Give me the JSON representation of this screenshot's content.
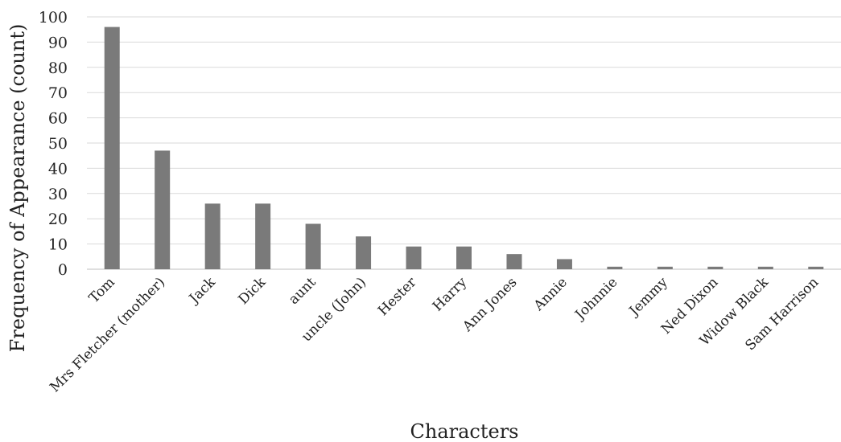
{
  "chart_data": {
    "type": "bar",
    "title": "",
    "xlabel": "Characters",
    "ylabel": "Frequency of Appearance (count)",
    "ylim": [
      0,
      100
    ],
    "yticks": [
      0,
      10,
      20,
      30,
      40,
      50,
      60,
      70,
      80,
      90,
      100
    ],
    "grid": true,
    "bar_color": "#7a7a7a",
    "categories": [
      "Tom",
      "Mrs Fletcher (mother)",
      "Jack",
      "Dick",
      "aunt",
      "uncle (John)",
      "Hester",
      "Harry",
      "Ann Jones",
      "Annie",
      "Johnnie",
      "Jemmy",
      "Ned Dixon",
      "Widow Black",
      "Sam Harrison"
    ],
    "values": [
      96,
      47,
      26,
      26,
      18,
      13,
      9,
      9,
      6,
      4,
      1,
      1,
      1,
      1,
      1
    ]
  }
}
